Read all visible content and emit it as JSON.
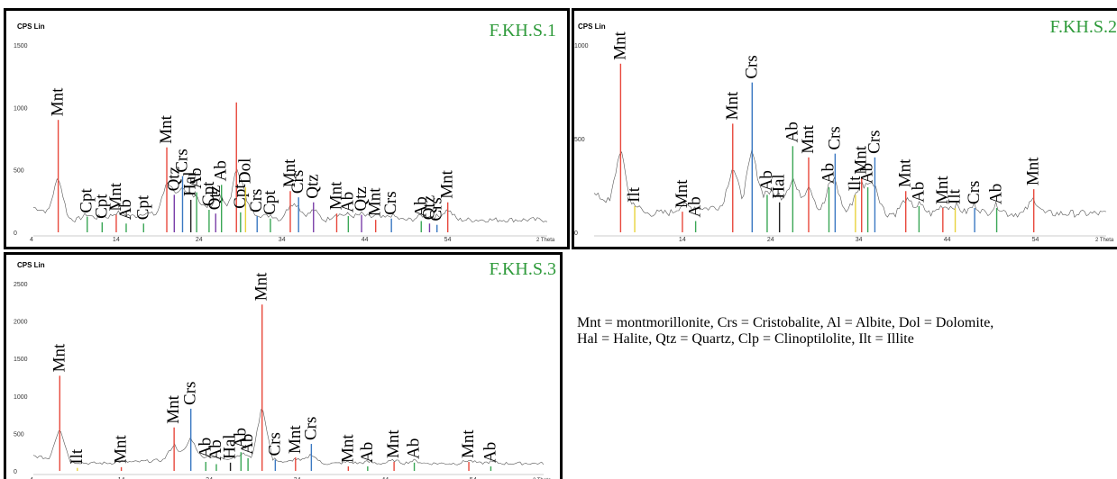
{
  "chart_data": [
    {
      "type": "line",
      "title": "F.KH.S.1",
      "ylabel": "CPS Lin",
      "xlabel": "",
      "xlim": [
        4,
        66
      ],
      "ylim": [
        0,
        1500
      ],
      "yticks": [
        0,
        500,
        1000,
        1500
      ],
      "xticks": [
        4,
        14,
        24,
        34,
        44,
        54
      ],
      "baseline": 100,
      "peaks": [
        {
          "x": 7.0,
          "y": 900,
          "label": "Mnt",
          "color": "#e8483c"
        },
        {
          "x": 10.5,
          "y": 125,
          "label": "Cpt",
          "color": "#3aa655"
        },
        {
          "x": 12.3,
          "y": 80,
          "label": "Cpt",
          "color": "#3aa655"
        },
        {
          "x": 14.0,
          "y": 140,
          "label": "Mnt",
          "color": "#e8483c"
        },
        {
          "x": 15.2,
          "y": 70,
          "label": "Ab",
          "color": "#3aa655"
        },
        {
          "x": 17.3,
          "y": 70,
          "label": "Cpt",
          "color": "#3aa655"
        },
        {
          "x": 20.1,
          "y": 680,
          "label": "Mnt",
          "color": "#e8483c"
        },
        {
          "x": 21.0,
          "y": 300,
          "label": "Qtz",
          "color": "#7a3ea8"
        },
        {
          "x": 22.0,
          "y": 450,
          "label": "Crs",
          "color": "#3a78c2"
        },
        {
          "x": 23.0,
          "y": 260,
          "label": "Hal",
          "color": "#222222"
        },
        {
          "x": 23.7,
          "y": 320,
          "label": "Ab",
          "color": "#3aa655"
        },
        {
          "x": 25.2,
          "y": 180,
          "label": "Cpt",
          "color": "#3aa655"
        },
        {
          "x": 26.0,
          "y": 150,
          "label": "Qtz",
          "color": "#7a3ea8"
        },
        {
          "x": 26.7,
          "y": 380,
          "label": "Ab",
          "color": "#3aa655"
        },
        {
          "x": 28.5,
          "y": 1040,
          "label": "",
          "color": "#e8483c"
        },
        {
          "x": 29.0,
          "y": 160,
          "label": "Cpt",
          "color": "#3aa655"
        },
        {
          "x": 29.6,
          "y": 360,
          "label": "Dol",
          "color": "#e8d23c"
        },
        {
          "x": 31.0,
          "y": 130,
          "label": "Crs",
          "color": "#3a78c2"
        },
        {
          "x": 32.6,
          "y": 110,
          "label": "Cpt",
          "color": "#3aa655"
        },
        {
          "x": 35.0,
          "y": 330,
          "label": "Mnt",
          "color": "#e8483c"
        },
        {
          "x": 36.0,
          "y": 280,
          "label": "Crs",
          "color": "#3a78c2"
        },
        {
          "x": 37.8,
          "y": 240,
          "label": "Qtz",
          "color": "#7a3ea8"
        },
        {
          "x": 40.6,
          "y": 150,
          "label": "Mnt",
          "color": "#e8483c"
        },
        {
          "x": 42.0,
          "y": 130,
          "label": "Ab",
          "color": "#3aa655"
        },
        {
          "x": 43.6,
          "y": 140,
          "label": "Qtz",
          "color": "#7a3ea8"
        },
        {
          "x": 45.3,
          "y": 100,
          "label": "Mnt",
          "color": "#e8483c"
        },
        {
          "x": 47.2,
          "y": 110,
          "label": "Crs",
          "color": "#3a78c2"
        },
        {
          "x": 50.8,
          "y": 90,
          "label": "Ab",
          "color": "#3aa655"
        },
        {
          "x": 51.8,
          "y": 70,
          "label": "Qtz",
          "color": "#7a3ea8"
        },
        {
          "x": 52.7,
          "y": 60,
          "label": "Crs",
          "color": "#3a78c2"
        },
        {
          "x": 54.0,
          "y": 240,
          "label": "Mnt",
          "color": "#e8483c"
        }
      ],
      "xtick_unit": "2 Theta"
    },
    {
      "type": "line",
      "title": "F.KH.S.2",
      "ylabel": "CPS Lin",
      "xlabel": "",
      "xlim": [
        4,
        62
      ],
      "ylim": [
        0,
        1000
      ],
      "yticks": [
        0,
        500,
        1000
      ],
      "xticks": [
        14,
        24,
        34,
        44,
        54
      ],
      "baseline": 100,
      "peaks": [
        {
          "x": 7.0,
          "y": 900,
          "label": "Mnt",
          "color": "#e8483c"
        },
        {
          "x": 8.6,
          "y": 140,
          "label": "Ilt",
          "color": "#e8d23c"
        },
        {
          "x": 14.0,
          "y": 110,
          "label": "Mnt",
          "color": "#e8483c"
        },
        {
          "x": 15.5,
          "y": 60,
          "label": "Ab",
          "color": "#3aa655"
        },
        {
          "x": 19.7,
          "y": 580,
          "label": "Mnt",
          "color": "#e8483c"
        },
        {
          "x": 21.9,
          "y": 800,
          "label": "Crs",
          "color": "#3a78c2"
        },
        {
          "x": 23.6,
          "y": 200,
          "label": "Ab",
          "color": "#3aa655"
        },
        {
          "x": 25.0,
          "y": 160,
          "label": "Hal",
          "color": "#222222"
        },
        {
          "x": 26.5,
          "y": 460,
          "label": "Ab",
          "color": "#3aa655"
        },
        {
          "x": 28.3,
          "y": 400,
          "label": "Mnt",
          "color": "#e8483c"
        },
        {
          "x": 30.6,
          "y": 240,
          "label": "Ab",
          "color": "#3aa655"
        },
        {
          "x": 31.3,
          "y": 420,
          "label": "Crs",
          "color": "#3a78c2"
        },
        {
          "x": 33.6,
          "y": 200,
          "label": "Ilt",
          "color": "#e8d23c"
        },
        {
          "x": 34.3,
          "y": 290,
          "label": "Mnt",
          "color": "#e8483c"
        },
        {
          "x": 35.0,
          "y": 240,
          "label": "Ab",
          "color": "#3aa655"
        },
        {
          "x": 35.8,
          "y": 400,
          "label": "Crs",
          "color": "#3a78c2"
        },
        {
          "x": 39.3,
          "y": 220,
          "label": "Mnt",
          "color": "#e8483c"
        },
        {
          "x": 40.8,
          "y": 140,
          "label": "Ab",
          "color": "#3aa655"
        },
        {
          "x": 43.5,
          "y": 130,
          "label": "Mnt",
          "color": "#e8483c"
        },
        {
          "x": 44.9,
          "y": 130,
          "label": "Ilt",
          "color": "#e8d23c"
        },
        {
          "x": 47.1,
          "y": 130,
          "label": "Crs",
          "color": "#3a78c2"
        },
        {
          "x": 49.6,
          "y": 130,
          "label": "Ab",
          "color": "#3aa655"
        },
        {
          "x": 53.8,
          "y": 230,
          "label": "Mnt",
          "color": "#e8483c"
        }
      ],
      "xtick_unit": "2 Theta"
    },
    {
      "type": "line",
      "title": "F.KH.S.3",
      "ylabel": "CPS Lin",
      "xlabel": "",
      "xlim": [
        4,
        62
      ],
      "ylim": [
        0,
        2500
      ],
      "yticks": [
        0,
        500,
        1000,
        1500,
        2000,
        2500
      ],
      "xticks": [
        4,
        14,
        24,
        34,
        44,
        54
      ],
      "baseline": 100,
      "peaks": [
        {
          "x": 7.0,
          "y": 1270,
          "label": "Mnt",
          "color": "#e8483c"
        },
        {
          "x": 9.0,
          "y": 40,
          "label": "Ilt",
          "color": "#e8d23c"
        },
        {
          "x": 14.0,
          "y": 50,
          "label": "Mnt",
          "color": "#e8483c"
        },
        {
          "x": 20.0,
          "y": 580,
          "label": "Mnt",
          "color": "#e8483c"
        },
        {
          "x": 21.9,
          "y": 830,
          "label": "Crs",
          "color": "#3a78c2"
        },
        {
          "x": 23.6,
          "y": 120,
          "label": "Ab",
          "color": "#3aa655"
        },
        {
          "x": 24.8,
          "y": 90,
          "label": "Ab",
          "color": "#3aa655"
        },
        {
          "x": 26.4,
          "y": 110,
          "label": "Hal",
          "color": "#222222"
        },
        {
          "x": 27.6,
          "y": 250,
          "label": "Ab",
          "color": "#3aa655"
        },
        {
          "x": 28.4,
          "y": 170,
          "label": "Ab",
          "color": "#3aa655"
        },
        {
          "x": 30.0,
          "y": 2220,
          "label": "Mnt",
          "color": "#e8483c"
        },
        {
          "x": 31.5,
          "y": 150,
          "label": "Crs",
          "color": "#3a78c2"
        },
        {
          "x": 33.8,
          "y": 180,
          "label": "Mnt",
          "color": "#e8483c"
        },
        {
          "x": 35.6,
          "y": 360,
          "label": "Crs",
          "color": "#3a78c2"
        },
        {
          "x": 39.8,
          "y": 60,
          "label": "Mnt",
          "color": "#e8483c"
        },
        {
          "x": 42.0,
          "y": 60,
          "label": "Ab",
          "color": "#3aa655"
        },
        {
          "x": 45.0,
          "y": 120,
          "label": "Mnt",
          "color": "#e8483c"
        },
        {
          "x": 47.3,
          "y": 110,
          "label": "Ab",
          "color": "#3aa655"
        },
        {
          "x": 53.5,
          "y": 120,
          "label": "Mnt",
          "color": "#e8483c"
        },
        {
          "x": 56.0,
          "y": 60,
          "label": "Ab",
          "color": "#3aa655"
        }
      ],
      "xtick_unit": "2 Theta"
    }
  ],
  "legend_text": {
    "line1": "Mnt = montmorillonite, Crs = Cristobalite, Al = Albite, Dol = Dolomite,",
    "line2": "Hal = Halite, Qtz = Quartz, Clp = Clinoptilolite, Ilt = Illite"
  },
  "colors": {
    "title": "#2e9a3a",
    "noise": "#555555"
  }
}
